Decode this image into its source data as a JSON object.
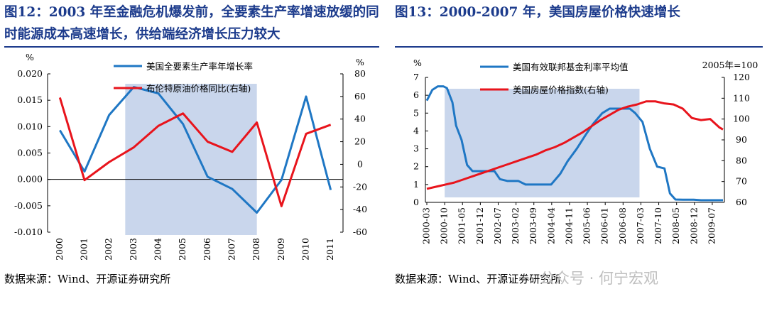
{
  "titles": {
    "fig12": "图12：2003 年至金融危机爆发前，全要素生产率增速放缓的同时能源成本高速增长，供给端经济增长压力较大",
    "fig13": "图13：2000-2007 年，美国房屋价格快速增长"
  },
  "sources": {
    "fig12": "数据来源：Wind、开源证券研究所",
    "fig13": "数据来源：Wind、开源证券研究所"
  },
  "watermark": "公众号 · 何宁宏观",
  "chart_data": [
    {
      "type": "line",
      "categories": [
        "2000",
        "2001",
        "2002",
        "2003",
        "2004",
        "2005",
        "2006",
        "2007",
        "2008",
        "2009",
        "2010",
        "2011"
      ],
      "shaded_range": [
        "2003",
        "2008"
      ],
      "series": [
        {
          "name": "美国全要素生产率年增长率",
          "axis": "left",
          "color": "#1f77c4",
          "values": [
            0.0093,
            0.0015,
            0.0122,
            0.0175,
            0.0163,
            0.0105,
            0.0005,
            -0.0018,
            -0.0063,
            -0.0001,
            0.0157,
            -0.002
          ]
        },
        {
          "name": "布伦特原油价格同比(右轴)",
          "axis": "right",
          "color": "#e8141c",
          "values": [
            59,
            -14,
            2,
            15,
            34,
            45,
            20,
            11,
            37,
            -37,
            27,
            35
          ]
        }
      ],
      "left_axis": {
        "unit": "%",
        "min": -0.01,
        "max": 0.02,
        "ticks": [
          "0.020",
          "0.015",
          "0.010",
          "0.005",
          "0.000",
          "-0.005",
          "-0.010"
        ]
      },
      "right_axis": {
        "unit": "%",
        "min": -60,
        "max": 80,
        "ticks": [
          "80",
          "60",
          "40",
          "20",
          "0",
          "-20",
          "-40",
          "-60"
        ]
      }
    },
    {
      "type": "line",
      "categories": [
        "2000-03",
        "2000-10",
        "2001-05",
        "2001-12",
        "2002-07",
        "2003-02",
        "2003-09",
        "2004-04",
        "2004-11",
        "2005-06",
        "2006-01",
        "2006-08",
        "2007-03",
        "2007-10",
        "2008-05",
        "2008-12",
        "2009-07"
      ],
      "shaded_range": [
        "2000-10",
        "2007-03"
      ],
      "series": [
        {
          "name": "美国有效联邦基金利率平均值",
          "axis": "left",
          "color": "#1f77c4",
          "x": [
            0,
            0.3,
            0.6,
            0.9,
            1.1,
            1.4,
            1.6,
            1.9,
            2.2,
            2.5,
            2.9,
            3.3,
            3.7,
            4.0,
            4.4,
            5.0,
            5.4,
            5.8,
            6.3,
            6.8,
            7.3,
            7.7,
            8.2,
            8.7,
            9.1,
            9.6,
            10.0,
            10.4,
            10.8,
            11.1,
            11.4,
            11.8,
            12.2,
            12.6,
            13.0,
            13.3,
            13.6,
            14.0,
            14.3,
            14.6,
            15.0,
            15.4,
            15.8,
            16.2
          ],
          "values": [
            5.7,
            6.3,
            6.5,
            6.5,
            6.4,
            5.6,
            4.3,
            3.5,
            2.1,
            1.75,
            1.75,
            1.75,
            1.75,
            1.3,
            1.2,
            1.2,
            1.0,
            1.0,
            1.0,
            1.0,
            1.6,
            2.3,
            3.0,
            3.8,
            4.4,
            5.0,
            5.25,
            5.25,
            5.25,
            5.25,
            5.0,
            4.5,
            3.0,
            2.0,
            1.9,
            0.5,
            0.16,
            0.15,
            0.15,
            0.15,
            0.12,
            0.12,
            0.12,
            0.12
          ]
        },
        {
          "name": "美国房屋价格指数(右轴)",
          "axis": "right",
          "color": "#e8141c",
          "x": [
            0,
            0.5,
            1,
            1.5,
            2,
            2.5,
            3,
            3.5,
            4,
            4.5,
            5,
            5.5,
            6,
            6.5,
            7,
            7.5,
            8,
            8.5,
            9,
            9.5,
            10,
            10.5,
            11,
            11.5,
            12,
            12.5,
            13,
            13.5,
            14,
            14.5,
            15,
            15.5,
            16,
            16.2
          ],
          "values": [
            66.5,
            67.5,
            68.5,
            69.5,
            71,
            72.5,
            74,
            75.5,
            77,
            78.5,
            80,
            81.5,
            83,
            85,
            86.5,
            88.5,
            91,
            93.5,
            96.5,
            99.5,
            102,
            104.5,
            106,
            107,
            108.5,
            108.5,
            107.5,
            107,
            105,
            100.5,
            99.5,
            100,
            96,
            95
          ]
        }
      ],
      "left_axis": {
        "unit": "%",
        "min": 0,
        "max": 7,
        "ticks": [
          "7",
          "6",
          "5",
          "4",
          "3",
          "2",
          "1",
          "0"
        ]
      },
      "right_axis": {
        "unit": "2005年=100",
        "min": 60,
        "max": 120,
        "ticks": [
          "120",
          "110",
          "100",
          "90",
          "80",
          "70",
          "60"
        ]
      }
    }
  ]
}
